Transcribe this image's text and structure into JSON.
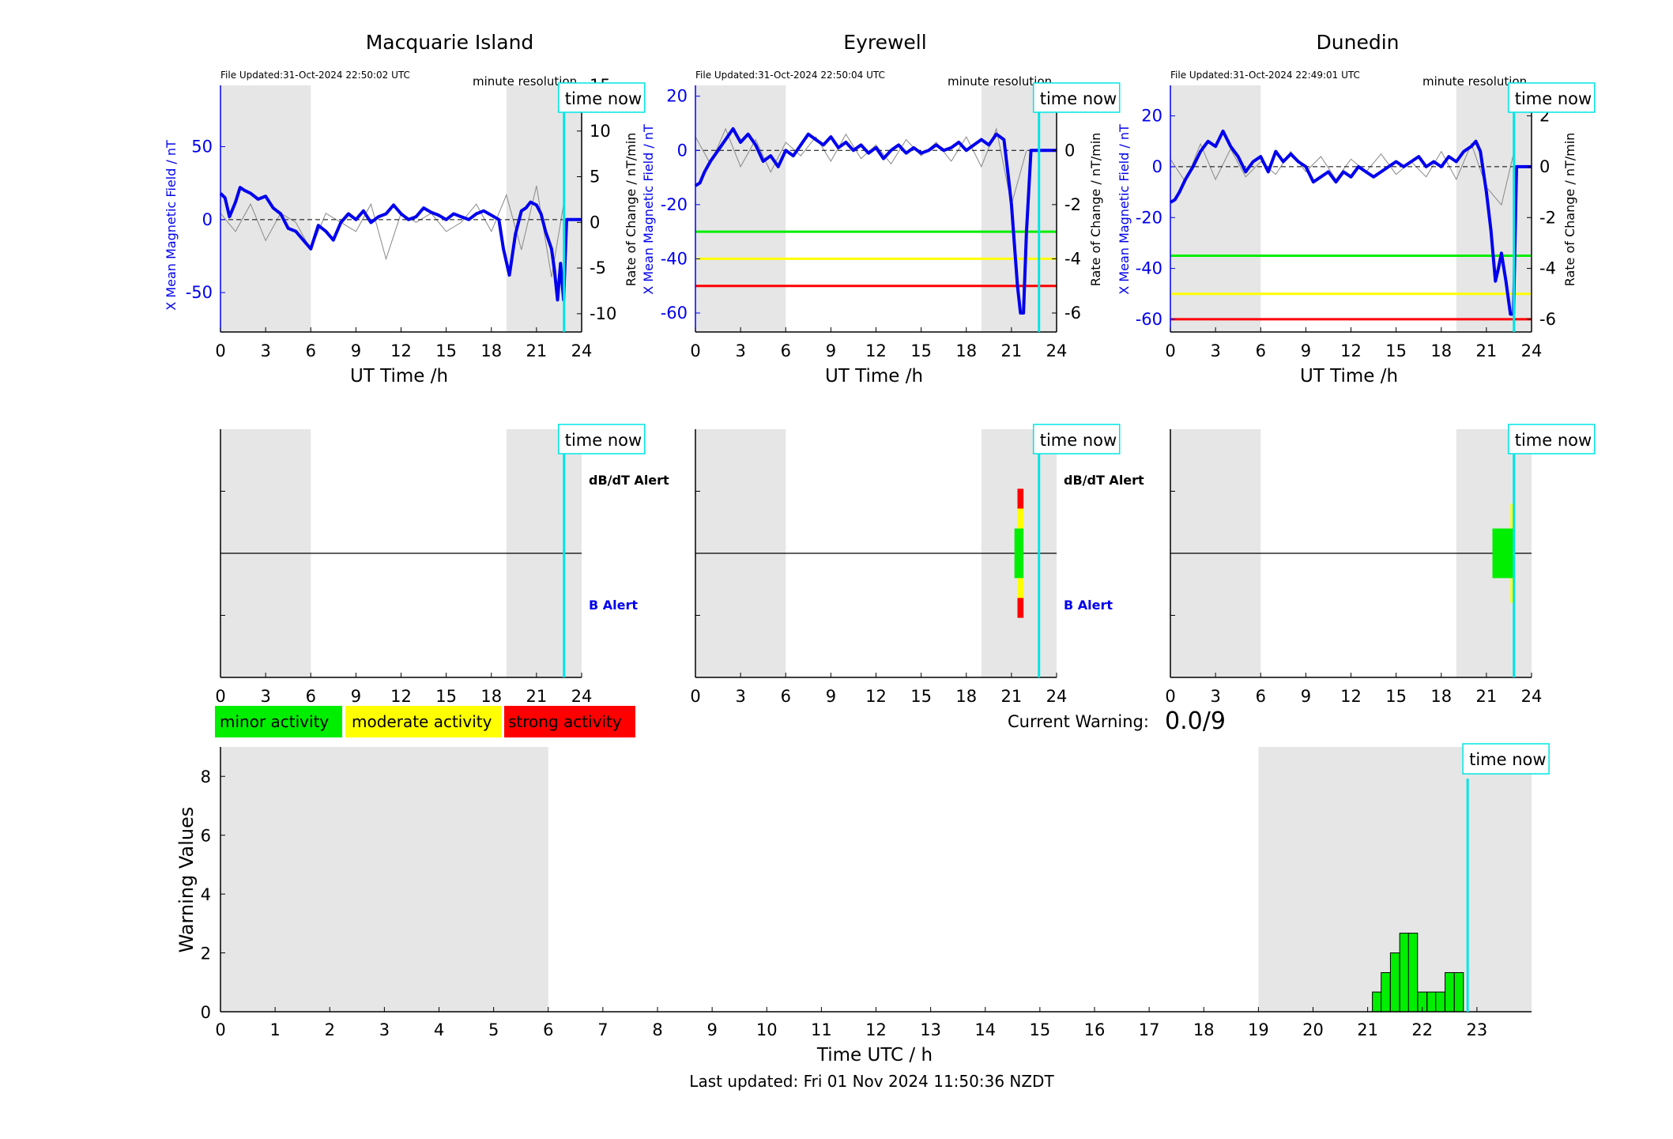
{
  "colors": {
    "night": "#e6e6e6",
    "b_line": "#0000ee",
    "rate_line": "#888888",
    "time_now": "#00e5e5",
    "minor": "#00ee00",
    "moderate": "#ffff00",
    "strong": "#ff0000",
    "b_label": "#0000ee",
    "axis": "#000000"
  },
  "common": {
    "xlabel": "UT Time /h",
    "x_ticks": [
      0,
      3,
      6,
      9,
      12,
      15,
      18,
      21,
      24
    ],
    "resolution_label": "minute resolution",
    "time_now_label": "time now",
    "time_now_hour": 22.83,
    "night_spans": [
      [
        0,
        6
      ],
      [
        19,
        24
      ]
    ],
    "alert_labels": {
      "dbdt": "dB/dT Alert",
      "b": "B Alert"
    }
  },
  "legend": {
    "minor": "minor activity",
    "moderate": "moderate activity",
    "strong": "strong activity"
  },
  "warning": {
    "label": "Current Warning:",
    "value": "0.0/9"
  },
  "footer": {
    "last_updated": "Last updated: Fri 01 Nov 2024 11:50:36 NZDT"
  },
  "chart_data": [
    {
      "type": "line",
      "title": "Macquarie Island",
      "file_updated": "File Updated:31-Oct-2024 22:50:02 UTC",
      "ylabel": "X Mean Magnetic Field / nT",
      "ylabel2": "Rate of Change / nT/min",
      "ylim": [
        -77,
        92
      ],
      "y_ticks": [
        -50,
        0,
        50
      ],
      "ylim2": [
        -12,
        15
      ],
      "y2_ticks": [
        -10,
        -5,
        0,
        5,
        10,
        15
      ],
      "thresholds": [],
      "series_b": {
        "x": [
          0,
          0.3,
          0.6,
          1.0,
          1.3,
          1.6,
          2.0,
          2.5,
          3.0,
          3.5,
          4.0,
          4.5,
          5.0,
          5.5,
          6.0,
          6.5,
          7.0,
          7.5,
          8.0,
          8.5,
          9.0,
          9.5,
          10.0,
          10.5,
          11.0,
          11.5,
          12.0,
          12.5,
          13.0,
          13.5,
          14.0,
          14.5,
          15.0,
          15.5,
          16.0,
          16.5,
          17.0,
          17.5,
          18.0,
          18.5,
          18.8,
          19.2,
          19.6,
          20.0,
          20.3,
          20.6,
          21.0,
          21.3,
          21.6,
          22.0,
          22.2,
          22.4,
          22.6,
          22.8,
          23.0,
          24.0
        ],
        "y": [
          18,
          15,
          2,
          12,
          22,
          20,
          18,
          14,
          16,
          8,
          4,
          -6,
          -8,
          -14,
          -20,
          -4,
          -8,
          -14,
          -2,
          4,
          0,
          6,
          -2,
          2,
          4,
          10,
          4,
          0,
          2,
          8,
          5,
          3,
          0,
          4,
          2,
          0,
          4,
          6,
          3,
          0,
          -20,
          -38,
          -10,
          6,
          8,
          12,
          10,
          4,
          -8,
          -20,
          -35,
          -55,
          -30,
          -55,
          0,
          0
        ]
      },
      "series_rate": {
        "x": [
          0,
          1,
          2,
          3,
          4,
          5,
          6,
          7,
          8,
          9,
          10,
          11,
          12,
          13,
          14,
          15,
          16,
          17,
          18,
          19,
          20,
          21,
          22,
          22.8
        ],
        "y": [
          1,
          -1,
          2,
          -2,
          1,
          0,
          -3,
          1,
          0,
          -1,
          2,
          -4,
          1,
          0,
          1,
          -1,
          0,
          2,
          -1,
          3,
          -3,
          4,
          -6,
          2
        ]
      },
      "alerts": []
    },
    {
      "type": "line",
      "title": "Eyrewell",
      "file_updated": "File Updated:31-Oct-2024 22:50:04 UTC",
      "ylabel": "X Mean Magnetic Field / nT",
      "ylabel2": "Rate of Change / nT/min",
      "ylim": [
        -67,
        24
      ],
      "y_ticks": [
        -60,
        -40,
        -20,
        0,
        20
      ],
      "ylim2": [
        -6.7,
        2.4
      ],
      "y2_ticks": [
        -6,
        -4,
        -2,
        0,
        2
      ],
      "thresholds": [
        {
          "value": -30,
          "level": "minor"
        },
        {
          "value": -40,
          "level": "moderate"
        },
        {
          "value": -50,
          "level": "strong"
        }
      ],
      "series_b": {
        "x": [
          0,
          0.3,
          0.6,
          1.0,
          1.5,
          2.0,
          2.5,
          3.0,
          3.5,
          4.0,
          4.5,
          5.0,
          5.5,
          6.0,
          6.5,
          7.0,
          7.5,
          8.0,
          8.5,
          9.0,
          9.5,
          10.0,
          10.5,
          11.0,
          11.5,
          12.0,
          12.5,
          13.0,
          13.5,
          14.0,
          14.5,
          15.0,
          15.5,
          16.0,
          16.5,
          17.0,
          17.5,
          18.0,
          18.5,
          19.0,
          19.5,
          20.0,
          20.5,
          20.8,
          21.0,
          21.2,
          21.4,
          21.6,
          21.8,
          22.0,
          22.3,
          22.5,
          23.0,
          24.0
        ],
        "y": [
          -13,
          -12,
          -8,
          -4,
          0,
          4,
          8,
          3,
          6,
          2,
          -4,
          -2,
          -6,
          0,
          -2,
          2,
          6,
          4,
          2,
          5,
          1,
          3,
          0,
          2,
          -1,
          1,
          -3,
          0,
          2,
          -1,
          1,
          -1,
          0,
          2,
          0,
          1,
          3,
          0,
          2,
          4,
          2,
          6,
          4,
          -10,
          -20,
          -35,
          -50,
          -60,
          -60,
          -30,
          0,
          0,
          0,
          0
        ]
      },
      "series_rate": {
        "x": [
          0,
          1,
          2,
          3,
          4,
          5,
          6,
          7,
          8,
          9,
          10,
          11,
          12,
          13,
          14,
          15,
          16,
          17,
          18,
          19,
          20,
          21,
          22
        ],
        "y": [
          0.5,
          -0.5,
          0.8,
          -0.6,
          0.4,
          -0.8,
          0.3,
          -0.2,
          0.5,
          -0.4,
          0.6,
          -0.3,
          0.2,
          -0.5,
          0.4,
          -0.2,
          0.3,
          -0.4,
          0.5,
          -0.6,
          0.8,
          -2.0,
          0.0
        ]
      },
      "alerts": [
        {
          "hour_from": 21.4,
          "hour_to": 21.8,
          "level": "strong",
          "lo": 0.24,
          "hi": 0.32
        },
        {
          "hour_from": 21.4,
          "hour_to": 21.8,
          "level": "moderate",
          "lo": 0.32,
          "hi": 0.4
        },
        {
          "hour_from": 21.2,
          "hour_to": 21.8,
          "level": "minor",
          "lo": 0.4,
          "hi": 0.6
        },
        {
          "hour_from": 21.4,
          "hour_to": 21.8,
          "level": "moderate",
          "lo": 0.6,
          "hi": 0.68
        },
        {
          "hour_from": 21.4,
          "hour_to": 21.8,
          "level": "strong",
          "lo": 0.68,
          "hi": 0.76
        }
      ]
    },
    {
      "type": "line",
      "title": "Dunedin",
      "file_updated": "File Updated:31-Oct-2024 22:49:01 UTC",
      "ylabel": "X Mean Magnetic Field / nT",
      "ylabel2": "Rate of Change / nT/min",
      "ylim": [
        -65,
        32
      ],
      "y_ticks": [
        -60,
        -40,
        -20,
        0,
        20
      ],
      "ylim2": [
        -6.5,
        3.2
      ],
      "y2_ticks": [
        -6,
        -4,
        -2,
        0,
        2
      ],
      "thresholds": [
        {
          "value": -35,
          "level": "minor"
        },
        {
          "value": -50,
          "level": "moderate"
        },
        {
          "value": -60,
          "level": "strong"
        }
      ],
      "series_b": {
        "x": [
          0,
          0.3,
          0.6,
          1.0,
          1.5,
          2.0,
          2.5,
          3.0,
          3.5,
          4.0,
          4.5,
          5.0,
          5.5,
          6.0,
          6.5,
          7.0,
          7.5,
          8.0,
          8.5,
          9.0,
          9.5,
          10.0,
          10.5,
          11.0,
          11.5,
          12.0,
          12.5,
          13.0,
          13.5,
          14.0,
          14.5,
          15.0,
          15.5,
          16.0,
          16.5,
          17.0,
          17.5,
          18.0,
          18.5,
          19.0,
          19.5,
          20.0,
          20.3,
          20.6,
          21.0,
          21.3,
          21.6,
          21.8,
          22.0,
          22.3,
          22.6,
          22.8,
          23.0,
          24.0
        ],
        "y": [
          -14,
          -13,
          -10,
          -5,
          0,
          6,
          10,
          8,
          14,
          8,
          4,
          -2,
          2,
          4,
          -2,
          6,
          2,
          5,
          2,
          0,
          -6,
          -4,
          -2,
          -6,
          -2,
          -4,
          0,
          -2,
          -4,
          -2,
          0,
          2,
          0,
          2,
          4,
          0,
          2,
          0,
          4,
          2,
          6,
          8,
          10,
          6,
          -10,
          -25,
          -45,
          -40,
          -34,
          -45,
          -58,
          -58,
          0,
          0
        ]
      },
      "series_rate": {
        "x": [
          0,
          1,
          2,
          3,
          4,
          5,
          6,
          7,
          8,
          9,
          10,
          11,
          12,
          13,
          14,
          15,
          16,
          17,
          18,
          19,
          20,
          21,
          22,
          22.8
        ],
        "y": [
          0.3,
          -0.6,
          0.9,
          -0.5,
          0.7,
          -0.4,
          0.2,
          -0.3,
          0.6,
          -0.2,
          0.4,
          -0.5,
          0.3,
          -0.2,
          0.5,
          -0.3,
          0.2,
          -0.4,
          0.6,
          -0.5,
          0.9,
          -0.8,
          -1.5,
          0.5
        ]
      },
      "alerts": [
        {
          "hour_from": 22.6,
          "hour_to": 22.9,
          "level": "moderate",
          "lo": 0.3,
          "hi": 0.7
        },
        {
          "hour_from": 21.4,
          "hour_to": 22.9,
          "level": "minor",
          "lo": 0.4,
          "hi": 0.6
        }
      ]
    },
    {
      "type": "bar",
      "xlabel": "Time UTC / h",
      "ylabel": "Warning Values",
      "ylim": [
        0,
        9
      ],
      "y_ticks": [
        0,
        2,
        4,
        6,
        8
      ],
      "xlim": [
        0,
        24
      ],
      "x_ticks": [
        0,
        1,
        2,
        3,
        4,
        5,
        6,
        7,
        8,
        9,
        10,
        11,
        12,
        13,
        14,
        15,
        16,
        17,
        18,
        19,
        20,
        21,
        22,
        23
      ],
      "night_spans": [
        [
          0,
          6
        ],
        [
          19,
          24
        ]
      ],
      "bin_width": 0.1667,
      "bars": [
        {
          "x": 21.17,
          "value": 0.67
        },
        {
          "x": 21.33,
          "value": 1.33
        },
        {
          "x": 21.5,
          "value": 2.0
        },
        {
          "x": 21.67,
          "value": 2.67
        },
        {
          "x": 21.83,
          "value": 2.67
        },
        {
          "x": 22.0,
          "value": 0.67
        },
        {
          "x": 22.17,
          "value": 0.67
        },
        {
          "x": 22.33,
          "value": 0.67
        },
        {
          "x": 22.5,
          "value": 1.33
        },
        {
          "x": 22.67,
          "value": 1.33
        }
      ],
      "time_now_hour": 22.83
    }
  ]
}
